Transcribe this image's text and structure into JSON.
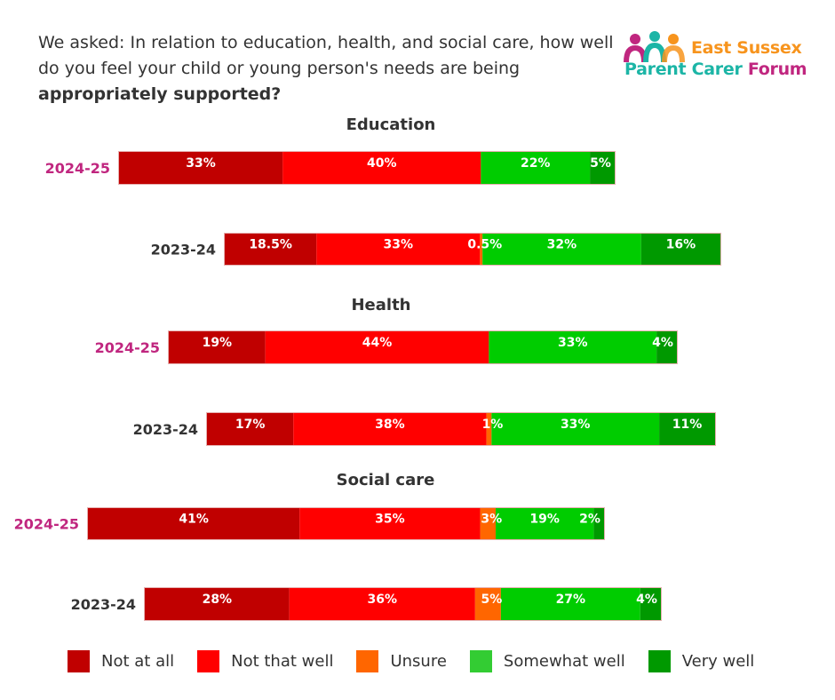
{
  "header": {
    "question_text": "We asked: In relation to education, health, and social care, how well do you feel your child or young person's needs are being",
    "question_bold": "appropriately supported?"
  },
  "logo": {
    "line1": "East Sussex",
    "line2_a": "Parent Carer",
    "line2_b": "Forum",
    "colors": [
      "#c0267f",
      "#1cb5a6",
      "#f7941d"
    ]
  },
  "chart_data": {
    "type": "bar",
    "orientation": "horizontal-stacked",
    "title": "We asked: In relation to education, health, and social care, how well do you feel your child or young person's needs are being appropriately supported?",
    "categories_legend": [
      "Not at all",
      "Not that well",
      "Unsure",
      "Somewhat well",
      "Very well"
    ],
    "colors": {
      "Not at all": "#c00000",
      "Not that well": "#ff0000",
      "Unsure": "#ff6600",
      "Somewhat well": "#00cc00",
      "Very well": "#009900"
    },
    "legend_colors": [
      "#c00000",
      "#ff0000",
      "#ff6600",
      "#33cc33",
      "#009900"
    ],
    "year_colors": {
      "2024-25": "#c0267f",
      "2023-24": "#333333"
    },
    "unit": "%",
    "groups": [
      {
        "name": "Education",
        "rows": [
          {
            "year": "2024-25",
            "values": [
              33,
              40,
              0,
              22,
              5
            ],
            "labels": [
              "33%",
              "40%",
              "",
              "22%",
              "5%"
            ]
          },
          {
            "year": "2023-24",
            "values": [
              18.5,
              33,
              0.5,
              32,
              16
            ],
            "labels": [
              "18.5%",
              "33%",
              "0.5%",
              "32%",
              "16%"
            ]
          }
        ]
      },
      {
        "name": "Health",
        "rows": [
          {
            "year": "2024-25",
            "values": [
              19,
              44,
              0,
              33,
              4
            ],
            "labels": [
              "19%",
              "44%",
              "",
              "33%",
              "4%"
            ]
          },
          {
            "year": "2023-24",
            "values": [
              17,
              38,
              1,
              33,
              11
            ],
            "labels": [
              "17%",
              "38%",
              "1%",
              "33%",
              "11%"
            ]
          }
        ]
      },
      {
        "name": "Social care",
        "rows": [
          {
            "year": "2024-25",
            "values": [
              41,
              35,
              3,
              19,
              2
            ],
            "labels": [
              "41%",
              "35%",
              "3%",
              "19%",
              "2%"
            ]
          },
          {
            "year": "2023-24",
            "values": [
              28,
              36,
              5,
              27,
              4
            ],
            "labels": [
              "28%",
              "36%",
              "5%",
              "27%",
              "4%"
            ]
          }
        ]
      }
    ]
  }
}
